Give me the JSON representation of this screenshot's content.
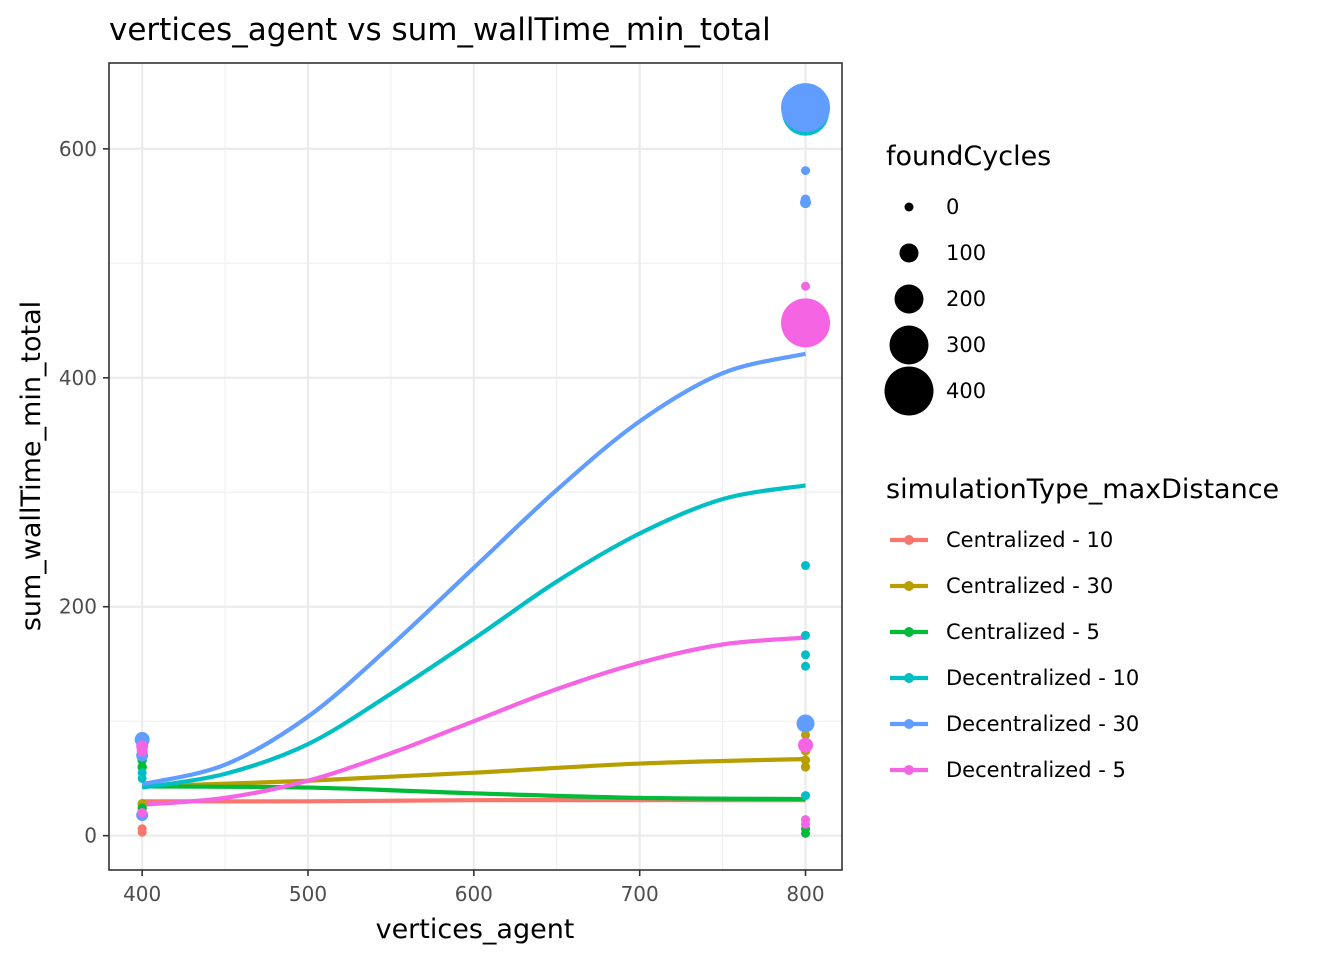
{
  "chart_data": {
    "type": "scatter",
    "title": "vertices_agent  vs  sum_wallTime_min_total",
    "xlabel": "vertices_agent",
    "ylabel": "sum_wallTime_min_total",
    "xlim": [
      380,
      822
    ],
    "ylim": [
      -30,
      675
    ],
    "x_ticks": [
      400,
      500,
      600,
      700,
      800
    ],
    "y_ticks": [
      0,
      200,
      400,
      600
    ],
    "grid": true,
    "legend_placement": "right",
    "size_legend": {
      "title": "foundCycles",
      "values": [
        0,
        100,
        200,
        300,
        400
      ]
    },
    "color_legend": {
      "title": "simulationType_maxDistance"
    },
    "series": [
      {
        "name": "Centralized - 10",
        "color": "#F8766D",
        "points": [
          {
            "x": 400,
            "y": 3,
            "size": 0
          },
          {
            "x": 400,
            "y": 6,
            "size": 0
          },
          {
            "x": 400,
            "y": 18,
            "size": 5
          },
          {
            "x": 400,
            "y": 27,
            "size": 3
          }
        ],
        "trend": [
          [
            400,
            30
          ],
          [
            500,
            30
          ],
          [
            600,
            31
          ],
          [
            700,
            31
          ],
          [
            800,
            31
          ]
        ]
      },
      {
        "name": "Centralized - 30",
        "color": "#B79F00",
        "points": [
          {
            "x": 400,
            "y": 28,
            "size": 3
          },
          {
            "x": 800,
            "y": 88,
            "size": 0
          },
          {
            "x": 800,
            "y": 74,
            "size": 5
          },
          {
            "x": 800,
            "y": 66,
            "size": 3
          },
          {
            "x": 800,
            "y": 60,
            "size": 3
          }
        ],
        "trend": [
          [
            400,
            43
          ],
          [
            500,
            48
          ],
          [
            600,
            55
          ],
          [
            700,
            63
          ],
          [
            800,
            67
          ]
        ]
      },
      {
        "name": "Centralized - 5",
        "color": "#00BA38",
        "points": [
          {
            "x": 400,
            "y": 66,
            "size": 5
          },
          {
            "x": 400,
            "y": 60,
            "size": 5
          },
          {
            "x": 400,
            "y": 24,
            "size": 3
          },
          {
            "x": 800,
            "y": 6,
            "size": 0
          },
          {
            "x": 800,
            "y": 2,
            "size": 0
          }
        ],
        "trend": [
          [
            400,
            43
          ],
          [
            500,
            42
          ],
          [
            600,
            37
          ],
          [
            700,
            33
          ],
          [
            800,
            32
          ]
        ]
      },
      {
        "name": "Decentralized - 10",
        "color": "#00BFC4",
        "points": [
          {
            "x": 400,
            "y": 55,
            "size": 0
          },
          {
            "x": 400,
            "y": 50,
            "size": 0
          },
          {
            "x": 400,
            "y": 82,
            "size": 40
          },
          {
            "x": 800,
            "y": 632,
            "size": 380
          },
          {
            "x": 800,
            "y": 236,
            "size": 0
          },
          {
            "x": 800,
            "y": 175,
            "size": 0
          },
          {
            "x": 800,
            "y": 158,
            "size": 0
          },
          {
            "x": 800,
            "y": 148,
            "size": 0
          },
          {
            "x": 800,
            "y": 35,
            "size": 0
          }
        ],
        "trend": [
          [
            400,
            42
          ],
          [
            450,
            54
          ],
          [
            500,
            80
          ],
          [
            550,
            124
          ],
          [
            600,
            172
          ],
          [
            650,
            222
          ],
          [
            700,
            264
          ],
          [
            750,
            294
          ],
          [
            800,
            306
          ]
        ]
      },
      {
        "name": "Decentralized - 30",
        "color": "#619CFF",
        "points": [
          {
            "x": 400,
            "y": 84,
            "size": 60
          },
          {
            "x": 400,
            "y": 70,
            "size": 30
          },
          {
            "x": 400,
            "y": 18,
            "size": 30
          },
          {
            "x": 800,
            "y": 636,
            "size": 400
          },
          {
            "x": 800,
            "y": 628,
            "size": 40
          },
          {
            "x": 800,
            "y": 581,
            "size": 0
          },
          {
            "x": 800,
            "y": 556,
            "size": 5
          },
          {
            "x": 800,
            "y": 553,
            "size": 20
          },
          {
            "x": 800,
            "y": 98,
            "size": 90
          }
        ],
        "trend": [
          [
            400,
            45
          ],
          [
            450,
            62
          ],
          [
            500,
            104
          ],
          [
            550,
            166
          ],
          [
            600,
            234
          ],
          [
            650,
            302
          ],
          [
            700,
            362
          ],
          [
            750,
            404
          ],
          [
            800,
            421
          ]
        ]
      },
      {
        "name": "Decentralized - 5",
        "color": "#F564E3",
        "points": [
          {
            "x": 400,
            "y": 78,
            "size": 30
          },
          {
            "x": 400,
            "y": 74,
            "size": 20
          },
          {
            "x": 400,
            "y": 20,
            "size": 5
          },
          {
            "x": 800,
            "y": 480,
            "size": 0
          },
          {
            "x": 800,
            "y": 448,
            "size": 400
          },
          {
            "x": 800,
            "y": 79,
            "size": 60
          },
          {
            "x": 800,
            "y": 14,
            "size": 0
          },
          {
            "x": 800,
            "y": 10,
            "size": 0
          }
        ],
        "trend": [
          [
            400,
            27
          ],
          [
            450,
            33
          ],
          [
            500,
            48
          ],
          [
            550,
            72
          ],
          [
            600,
            100
          ],
          [
            650,
            128
          ],
          [
            700,
            151
          ],
          [
            750,
            167
          ],
          [
            800,
            173
          ]
        ]
      }
    ]
  }
}
